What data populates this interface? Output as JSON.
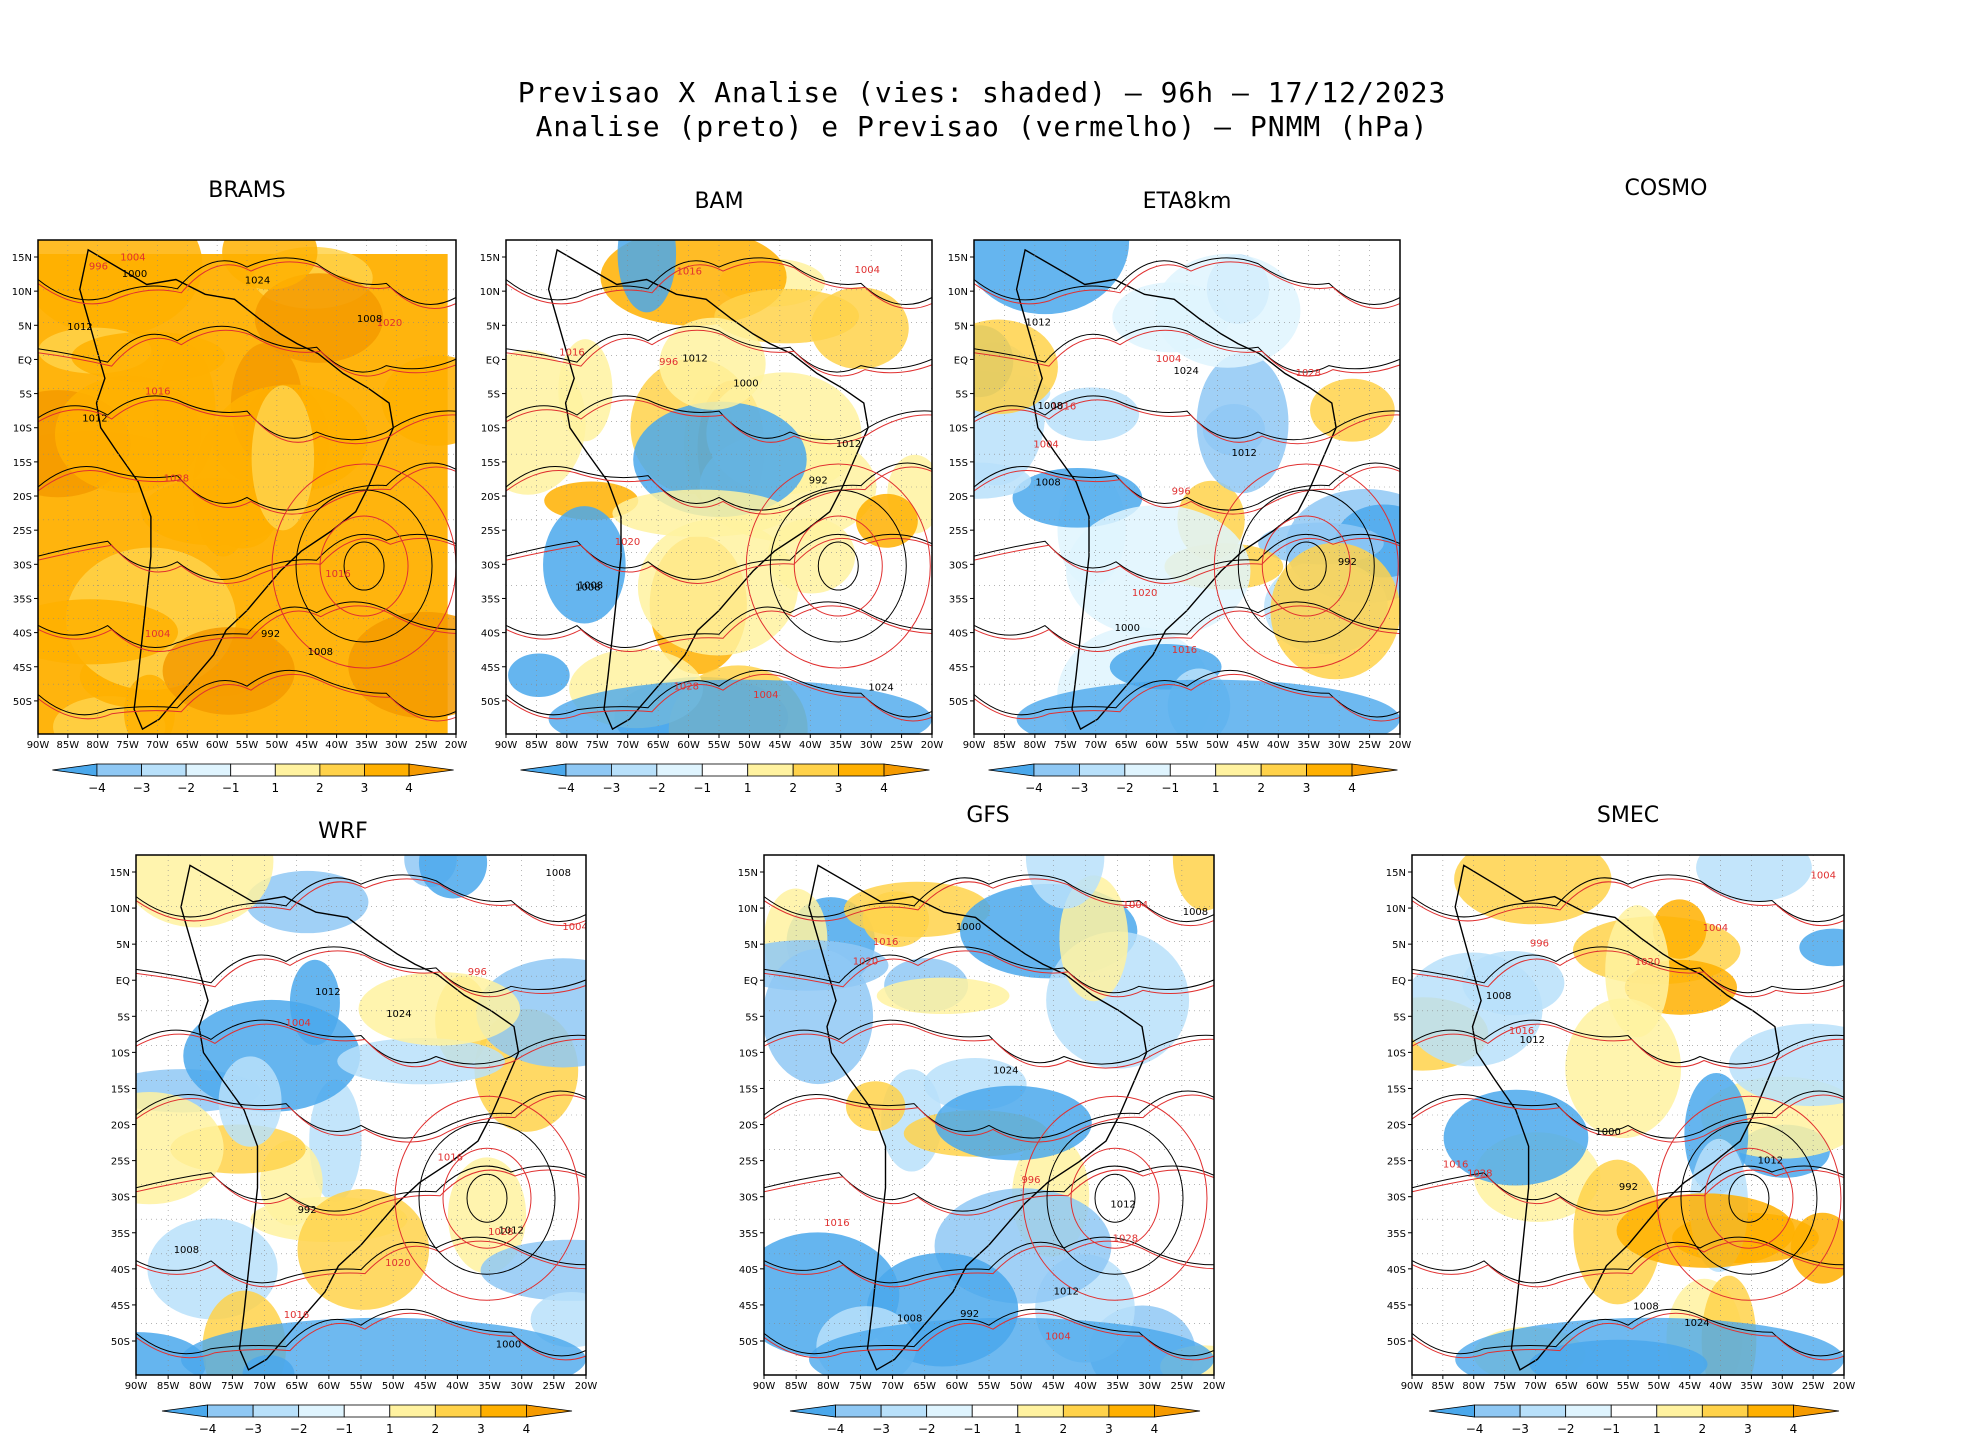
{
  "header": {
    "line1": "Previsao X Analise (vies: shaded) – 96h – 17/12/2023",
    "line2": "Analise (preto) e Previsao (vermelho) – PNMM (hPa)"
  },
  "colorbar": {
    "labels": [
      "-4",
      "-3",
      "-2",
      "-1",
      "1",
      "2",
      "3",
      "4"
    ],
    "colors": [
      "#4aa8ec",
      "#8fc8f4",
      "#b8e0fa",
      "#dff4fe",
      "#ffffff",
      "#fff2a0",
      "#ffd24a",
      "#ffb000",
      "#f59a00"
    ]
  },
  "lat_labels": [
    "15N",
    "10N",
    "5N",
    "EQ",
    "5S",
    "10S",
    "15S",
    "20S",
    "25S",
    "30S",
    "35S",
    "40S",
    "45S",
    "50S"
  ],
  "lon_labels": [
    "90W",
    "85W",
    "80W",
    "75W",
    "70W",
    "65W",
    "60W",
    "55W",
    "50W",
    "45W",
    "40W",
    "35W",
    "30W",
    "25W",
    "20W"
  ],
  "isobars": {
    "analysis_color": "#000000",
    "forecast_color": "#e03030",
    "sample_labels": [
      "1012",
      "1016",
      "1008",
      "1004",
      "1000",
      "996",
      "992",
      "1020",
      "1024",
      "1028"
    ]
  },
  "panels": [
    {
      "id": "brams",
      "title": "BRAMS",
      "bias": "warm-strong",
      "has_map": true
    },
    {
      "id": "bam",
      "title": "BAM",
      "bias": "warm",
      "has_map": true
    },
    {
      "id": "eta8km",
      "title": "ETA8km",
      "bias": "cool",
      "has_map": true
    },
    {
      "id": "cosmo",
      "title": "COSMO",
      "bias": "none",
      "has_map": false
    },
    {
      "id": "wrf",
      "title": "WRF",
      "bias": "mixed",
      "has_map": true
    },
    {
      "id": "gfs",
      "title": "GFS",
      "bias": "mixed-cool",
      "has_map": true
    },
    {
      "id": "smec",
      "title": "SMEC",
      "bias": "mixed-warm",
      "has_map": true
    }
  ]
}
